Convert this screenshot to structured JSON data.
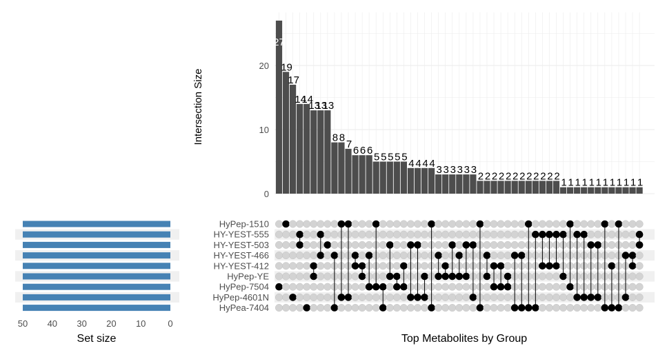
{
  "chart_data": {
    "type": "upset",
    "y_axis_label": "Intersection Size",
    "x_axis_label": "Top Metabolites by Group",
    "set_size_label": "Set size",
    "y_ticks": [
      0,
      10,
      20
    ],
    "ylim": [
      0,
      28
    ],
    "set_size_ticks": [
      50,
      40,
      30,
      20,
      10,
      0
    ],
    "set_size_lim": [
      0,
      50
    ],
    "bar_color": "#4d4d4d",
    "set_bar_color": "#4682b4",
    "dot_on_color": "#000000",
    "dot_off_color": "#d3d3d3",
    "stripe_color": "#f0f0f0",
    "sets": [
      {
        "name": "HyPep-1510",
        "size": 50
      },
      {
        "name": "HY-YEST-555",
        "size": 50
      },
      {
        "name": "HY-YEST-503",
        "size": 50
      },
      {
        "name": "HY-YEST-466",
        "size": 50
      },
      {
        "name": "HY-YEST-412",
        "size": 50
      },
      {
        "name": "HyPep-YE",
        "size": 50
      },
      {
        "name": "HyPep-7504",
        "size": 50
      },
      {
        "name": "HyPep-4601N",
        "size": 50
      },
      {
        "name": "HyPea-7404",
        "size": 50
      }
    ],
    "intersections": [
      {
        "size": 27,
        "label": "27",
        "sets": [
          "HyPep-7504"
        ]
      },
      {
        "size": 19,
        "label": "19",
        "sets": [
          "HyPep-1510"
        ]
      },
      {
        "size": 17,
        "label": "17",
        "sets": [
          "HyPep-4601N"
        ]
      },
      {
        "size": 14,
        "label": "14",
        "sets": [
          "HY-YEST-555",
          "HY-YEST-503"
        ]
      },
      {
        "size": 14,
        "label": "14",
        "sets": [
          "HyPea-7404"
        ]
      },
      {
        "size": 13,
        "label": "13",
        "sets": [
          "HY-YEST-412",
          "HyPep-YE"
        ]
      },
      {
        "size": 13,
        "label": "13",
        "sets": [
          "HY-YEST-555",
          "HY-YEST-466"
        ]
      },
      {
        "size": 13,
        "label": "13",
        "sets": [
          "HY-YEST-503"
        ]
      },
      {
        "size": 8,
        "label": "8",
        "sets": [
          "HY-YEST-466",
          "HyPea-7404"
        ]
      },
      {
        "size": 8,
        "label": "8",
        "sets": [
          "HyPep-1510",
          "HyPep-4601N"
        ]
      },
      {
        "size": 7,
        "label": "7",
        "sets": [
          "HyPep-1510",
          "HyPep-4601N"
        ]
      },
      {
        "size": 6,
        "label": "6",
        "sets": [
          "HY-YEST-466",
          "HY-YEST-412"
        ]
      },
      {
        "size": 6,
        "label": "6",
        "sets": [
          "HY-YEST-412",
          "HyPep-YE"
        ]
      },
      {
        "size": 6,
        "label": "6",
        "sets": [
          "HY-YEST-466",
          "HyPep-7504"
        ]
      },
      {
        "size": 5,
        "label": "5",
        "sets": [
          "HyPep-1510",
          "HyPep-7504"
        ]
      },
      {
        "size": 5,
        "label": "5",
        "sets": [
          "HyPep-7504",
          "HyPea-7404"
        ]
      },
      {
        "size": 5,
        "label": "5",
        "sets": [
          "HY-YEST-503",
          "HyPep-YE"
        ]
      },
      {
        "size": 5,
        "label": "5",
        "sets": [
          "HyPep-YE",
          "HyPep-7504"
        ]
      },
      {
        "size": 5,
        "label": "5",
        "sets": [
          "HY-YEST-412",
          "HyPep-7504"
        ]
      },
      {
        "size": 4,
        "label": "4",
        "sets": [
          "HY-YEST-503",
          "HyPep-4601N"
        ]
      },
      {
        "size": 4,
        "label": "4",
        "sets": [
          "HY-YEST-503",
          "HyPep-4601N"
        ]
      },
      {
        "size": 4,
        "label": "4",
        "sets": [
          "HyPep-YE",
          "HyPep-4601N"
        ]
      },
      {
        "size": 4,
        "label": "4",
        "sets": [
          "HyPep-1510",
          "HyPea-7404"
        ]
      },
      {
        "size": 3,
        "label": "3",
        "sets": [
          "HY-YEST-466",
          "HyPep-YE"
        ]
      },
      {
        "size": 3,
        "label": "3",
        "sets": [
          "HY-YEST-412",
          "HyPep-YE"
        ]
      },
      {
        "size": 3,
        "label": "3",
        "sets": [
          "HY-YEST-503",
          "HyPep-YE"
        ]
      },
      {
        "size": 3,
        "label": "3",
        "sets": [
          "HY-YEST-466",
          "HyPep-YE"
        ]
      },
      {
        "size": 3,
        "label": "3",
        "sets": [
          "HY-YEST-503",
          "HyPep-YE"
        ]
      },
      {
        "size": 3,
        "label": "3",
        "sets": [
          "HY-YEST-503",
          "HyPep-4601N"
        ]
      },
      {
        "size": 2,
        "label": "2",
        "sets": [
          "HyPep-1510",
          "HyPea-7404"
        ]
      },
      {
        "size": 2,
        "label": "2",
        "sets": [
          "HY-YEST-466",
          "HyPep-YE"
        ]
      },
      {
        "size": 2,
        "label": "2",
        "sets": [
          "HY-YEST-412",
          "HyPep-7504"
        ]
      },
      {
        "size": 2,
        "label": "2",
        "sets": [
          "HY-YEST-412",
          "HyPep-7504"
        ]
      },
      {
        "size": 2,
        "label": "2",
        "sets": [
          "HyPep-YE",
          "HyPep-7504"
        ]
      },
      {
        "size": 2,
        "label": "2",
        "sets": [
          "HY-YEST-466",
          "HyPea-7404"
        ]
      },
      {
        "size": 2,
        "label": "2",
        "sets": [
          "HY-YEST-466",
          "HyPea-7404"
        ]
      },
      {
        "size": 2,
        "label": "2",
        "sets": [
          "HyPep-1510",
          "HyPea-7404"
        ]
      },
      {
        "size": 2,
        "label": "2",
        "sets": [
          "HY-YEST-555",
          "HyPea-7404"
        ]
      },
      {
        "size": 2,
        "label": "2",
        "sets": [
          "HY-YEST-555",
          "HY-YEST-412"
        ]
      },
      {
        "size": 2,
        "label": "2",
        "sets": [
          "HY-YEST-555",
          "HY-YEST-412"
        ]
      },
      {
        "size": 2,
        "label": "2",
        "sets": [
          "HY-YEST-555",
          "HY-YEST-412"
        ]
      },
      {
        "size": 1,
        "label": "1",
        "sets": [
          "HY-YEST-555",
          "HyPep-YE"
        ]
      },
      {
        "size": 1,
        "label": "1",
        "sets": [
          "HyPep-1510",
          "HyPep-7504"
        ]
      },
      {
        "size": 1,
        "label": "1",
        "sets": [
          "HY-YEST-555",
          "HyPep-4601N"
        ]
      },
      {
        "size": 1,
        "label": "1",
        "sets": [
          "HY-YEST-555",
          "HyPep-4601N"
        ]
      },
      {
        "size": 1,
        "label": "1",
        "sets": [
          "HY-YEST-503",
          "HyPep-4601N"
        ]
      },
      {
        "size": 1,
        "label": "1",
        "sets": [
          "HY-YEST-503",
          "HyPep-4601N"
        ]
      },
      {
        "size": 1,
        "label": "1",
        "sets": [
          "HyPep-1510",
          "HyPea-7404"
        ]
      },
      {
        "size": 1,
        "label": "1",
        "sets": [
          "HY-YEST-412",
          "HyPea-7404"
        ]
      },
      {
        "size": 1,
        "label": "1",
        "sets": [
          "HyPep-1510",
          "HyPea-7404"
        ]
      },
      {
        "size": 1,
        "label": "1",
        "sets": [
          "HY-YEST-466",
          "HyPep-4601N"
        ]
      },
      {
        "size": 1,
        "label": "1",
        "sets": [
          "HY-YEST-466",
          "HY-YEST-412"
        ]
      },
      {
        "size": 1,
        "label": "1",
        "sets": [
          "HY-YEST-555",
          "HY-YEST-503"
        ]
      }
    ]
  }
}
